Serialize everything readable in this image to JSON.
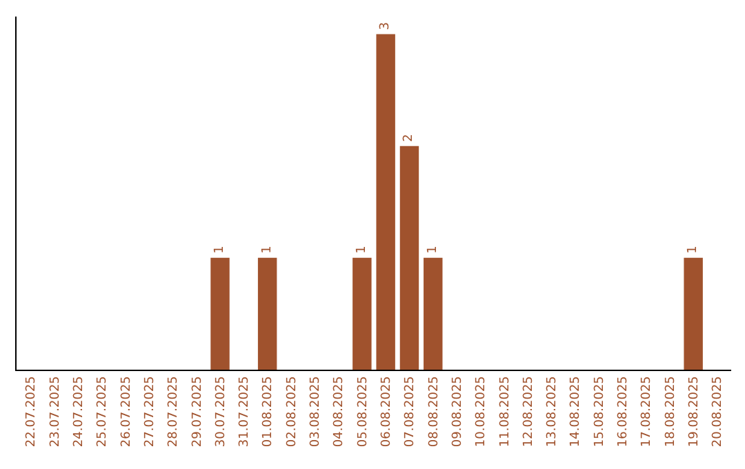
{
  "chart_data": {
    "type": "bar",
    "categories": [
      "22.07.2025",
      "23.07.2025",
      "24.07.2025",
      "25.07.2025",
      "26.07.2025",
      "27.07.2025",
      "28.07.2025",
      "29.07.2025",
      "30.07.2025",
      "31.07.2025",
      "01.08.2025",
      "02.08.2025",
      "03.08.2025",
      "04.08.2025",
      "05.08.2025",
      "06.08.2025",
      "07.08.2025",
      "08.08.2025",
      "09.08.2025",
      "10.08.2025",
      "11.08.2025",
      "12.08.2025",
      "13.08.2025",
      "14.08.2025",
      "15.08.2025",
      "16.08.2025",
      "17.08.2025",
      "18.08.2025",
      "19.08.2025",
      "20.08.2025"
    ],
    "series": [
      {
        "color": "#a0522d",
        "values": [
          0,
          0,
          0,
          0,
          0,
          0,
          0,
          0,
          1,
          0,
          1,
          0,
          0,
          0,
          1,
          3,
          2,
          1,
          0,
          0,
          0,
          0,
          0,
          0,
          0,
          0,
          0,
          0,
          1,
          0
        ],
        "value_labels": [
          null,
          null,
          null,
          null,
          null,
          null,
          null,
          null,
          "1",
          null,
          "1",
          null,
          null,
          null,
          "1",
          "3",
          "2",
          "1",
          null,
          null,
          null,
          null,
          null,
          null,
          null,
          null,
          null,
          null,
          "1",
          null
        ]
      }
    ],
    "legend": false
  }
}
